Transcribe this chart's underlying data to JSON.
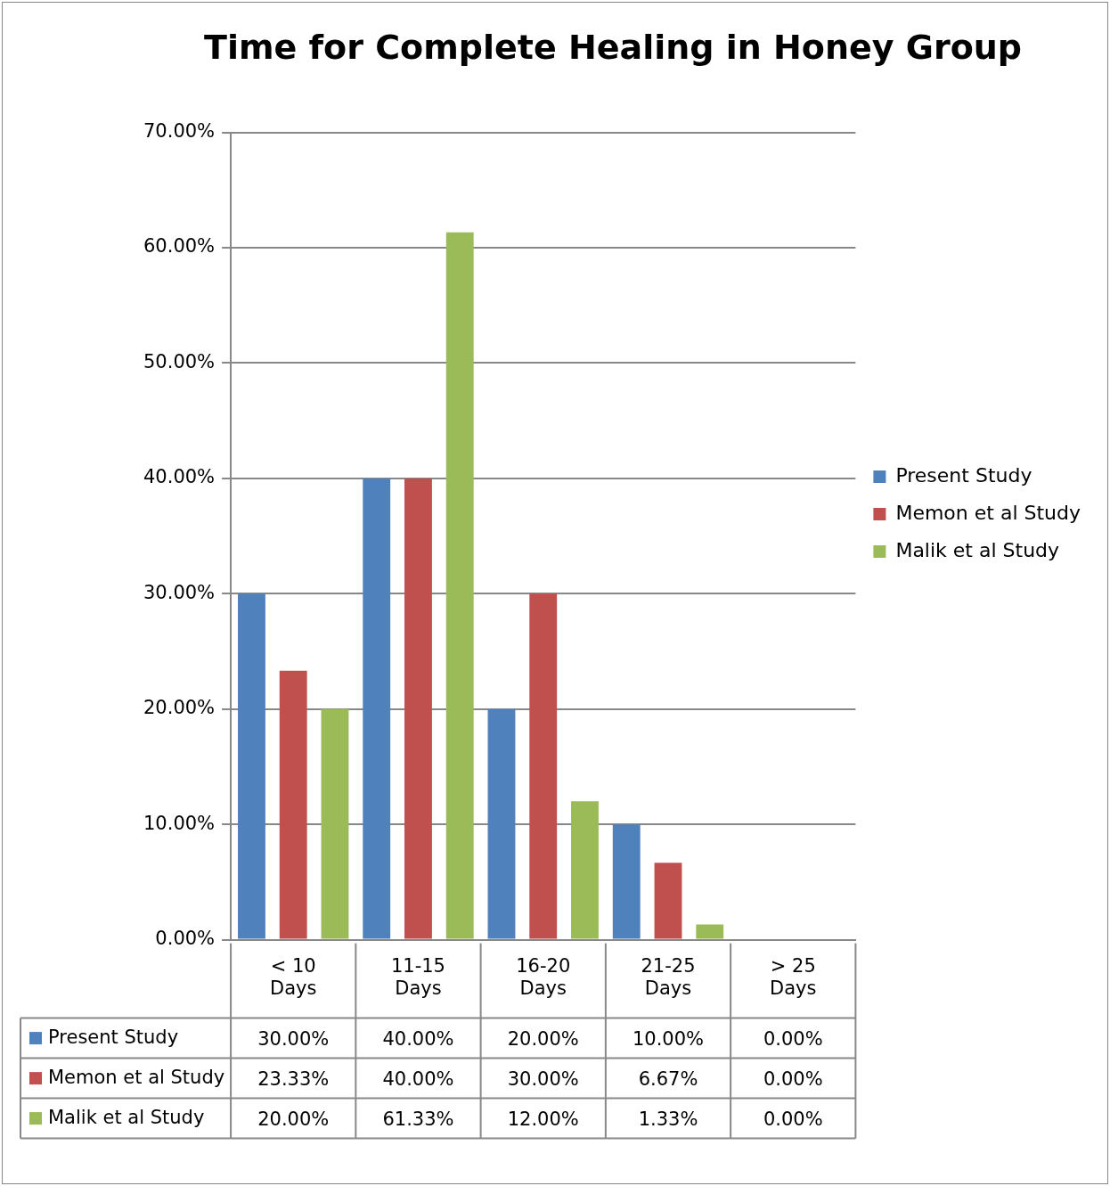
{
  "chart_data": {
    "type": "bar",
    "title": "Time for Complete Healing in Honey Group",
    "categories": [
      "< 10 Days",
      "11-15 Days",
      "16-20 Days",
      "21-25 Days",
      "> 25 Days"
    ],
    "series": [
      {
        "name": "Present Study",
        "color": "#4f81bd",
        "values": [
          30,
          40,
          20,
          10,
          0
        ],
        "value_labels": [
          "30.00%",
          "40.00%",
          "20.00%",
          "10.00%",
          "0.00%"
        ]
      },
      {
        "name": "Memon et al Study",
        "color": "#c0504d",
        "values": [
          23.33,
          40,
          30,
          6.67,
          0
        ],
        "value_labels": [
          "23.33%",
          "40.00%",
          "30.00%",
          "6.67%",
          "0.00%"
        ]
      },
      {
        "name": "Malik et al Study",
        "color": "#9bbb59",
        "values": [
          20,
          61.33,
          12,
          1.33,
          0
        ],
        "value_labels": [
          "20.00%",
          "61.33%",
          "12.00%",
          "1.33%",
          "0.00%"
        ]
      }
    ],
    "ylim": [
      0,
      70
    ],
    "yticks": [
      {
        "value": 0,
        "label": "0.00%"
      },
      {
        "value": 10,
        "label": "10.00%"
      },
      {
        "value": 20,
        "label": "20.00%"
      },
      {
        "value": 30,
        "label": "30.00%"
      },
      {
        "value": 40,
        "label": "40.00%"
      },
      {
        "value": 50,
        "label": "50.00%"
      },
      {
        "value": 60,
        "label": "60.00%"
      },
      {
        "value": 70,
        "label": "70.00%"
      }
    ],
    "grid": "y",
    "legend": "right"
  }
}
